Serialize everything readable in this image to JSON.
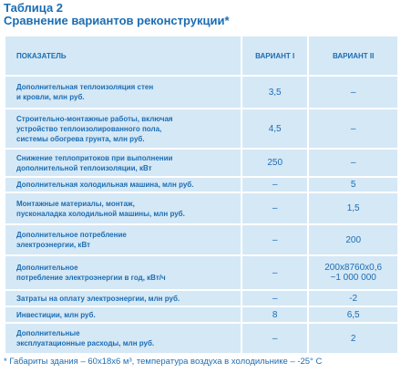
{
  "header": {
    "title": "Таблица 2",
    "subtitle": "Сравнение вариантов реконструкции*"
  },
  "table": {
    "columns": [
      "ПОКАЗАТЕЛЬ",
      "ВАРИАНТ I",
      "ВАРИАНТ II"
    ],
    "rows": [
      [
        "Дополнительная теплоизоляция стен\nи кровли, млн руб.",
        "3,5",
        "–"
      ],
      [
        "Строительно-монтажные работы, включая\nустройство теплоизолированного пола,\nсистемы обогрева грунта, млн руб.",
        "4,5",
        "–"
      ],
      [
        "Снижение теплопритоков при выполнении\nдополнительной теплоизоляции, кВт",
        "250",
        "–"
      ],
      [
        "Дополнительная холодильная машина, млн руб.",
        "–",
        "5"
      ],
      [
        "Монтажные материалы, монтаж,\nпусконаладка холодильной машины, млн руб.",
        "–",
        "1,5"
      ],
      [
        "Дополнительное потребление\nэлектроэнергии, кВт",
        "–",
        "200"
      ],
      [
        "Дополнительное\nпотребление электроэнергии в год, кВт/ч",
        "–",
        "200x8760x0,6\n~1 000 000"
      ],
      [
        "Затраты на оплату электроэнергии, млн руб.",
        "–",
        "-2"
      ],
      [
        "Инвестиции, млн руб.",
        "8",
        "6,5"
      ],
      [
        "Дополнительные\nэксплуатационные расходы, млн руб.",
        "–",
        "2"
      ]
    ]
  },
  "footnote": "* Габариты здания – 60x18x6 м³, температура воздуха в холодильнике – -25° C"
}
